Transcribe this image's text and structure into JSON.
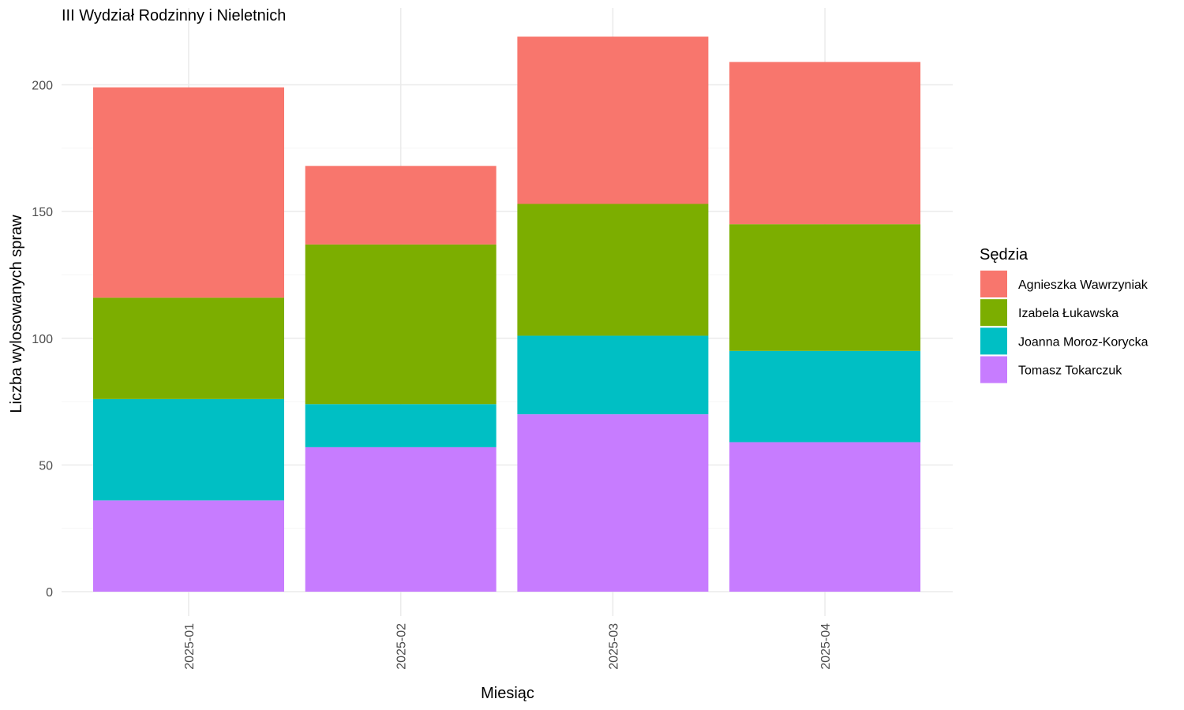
{
  "chart_data": {
    "type": "bar",
    "stacked": true,
    "title": "III Wydział Rodzinny i Nieletnich",
    "xlabel": "Miesiąc",
    "ylabel": "Liczba wylosowanych spraw",
    "categories": [
      "2025-01",
      "2025-02",
      "2025-03",
      "2025-04"
    ],
    "ylim": [
      0,
      223
    ],
    "yticks": [
      0,
      50,
      100,
      150,
      200
    ],
    "grid": true,
    "legend": {
      "title": "Sędzia",
      "position": "right"
    },
    "series": [
      {
        "name": "Tomasz Tokarczuk",
        "color": "#C77CFF",
        "values": [
          36,
          57,
          70,
          59
        ]
      },
      {
        "name": "Joanna Moroz-Korycka",
        "color": "#00BFC4",
        "values": [
          40,
          17,
          31,
          36
        ]
      },
      {
        "name": "Izabela Łukawska",
        "color": "#7CAE00",
        "values": [
          40,
          63,
          52,
          50
        ]
      },
      {
        "name": "Agnieszka Wawrzyniak",
        "color": "#F8766D",
        "values": [
          83,
          31,
          66,
          64
        ]
      }
    ],
    "legend_order": [
      "Agnieszka Wawrzyniak",
      "Izabela Łukawska",
      "Joanna Moroz-Korycka",
      "Tomasz Tokarczuk"
    ]
  }
}
